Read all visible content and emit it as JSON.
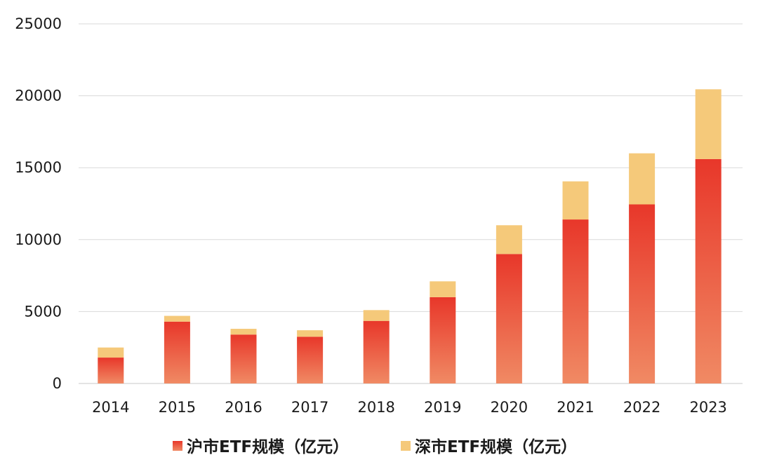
{
  "chart_data": {
    "type": "bar",
    "stacked": true,
    "categories": [
      "2014",
      "2015",
      "2016",
      "2017",
      "2018",
      "2019",
      "2020",
      "2021",
      "2022",
      "2023"
    ],
    "series": [
      {
        "name": "沪市ETF规模（亿元）",
        "values": [
          1800,
          4300,
          3400,
          3250,
          4350,
          6000,
          9000,
          11400,
          12450,
          15600
        ],
        "color_top": "#e8372a",
        "color_bottom": "#f08a64"
      },
      {
        "name": "深市ETF规模（亿元）",
        "values": [
          700,
          400,
          400,
          450,
          750,
          1100,
          2000,
          2650,
          3550,
          4850
        ],
        "color": "#f5c97a"
      }
    ],
    "ylim": [
      0,
      25000
    ],
    "yticks": [
      0,
      5000,
      10000,
      15000,
      20000,
      25000
    ],
    "grid": true,
    "legend_position": "bottom",
    "title": "",
    "xlabel": "",
    "ylabel": ""
  }
}
